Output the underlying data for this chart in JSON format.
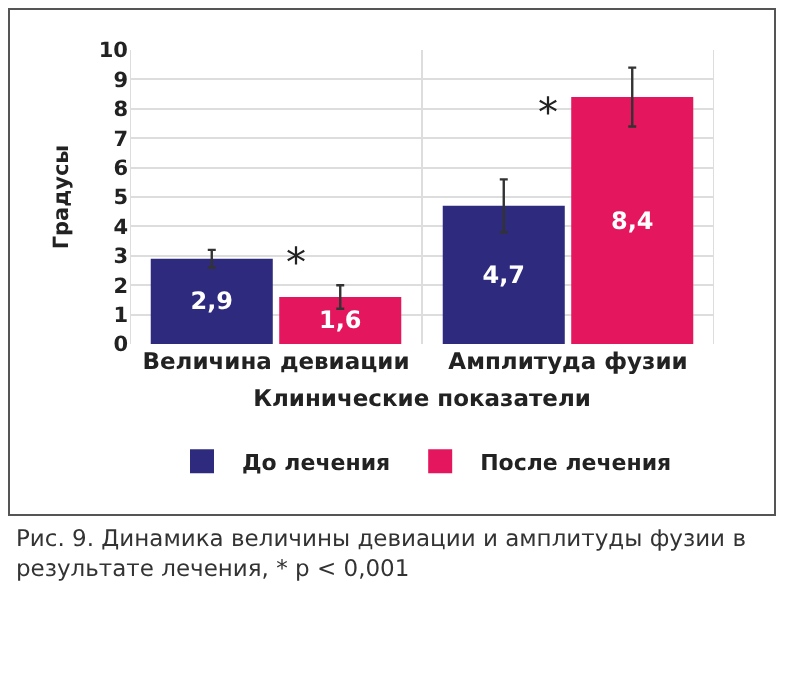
{
  "chart_data": {
    "type": "bar",
    "xlabel": "Клинические показатели",
    "ylabel": "Градусы",
    "categories": [
      "Величина девиации",
      "Амплитуда фузии"
    ],
    "series": [
      {
        "name": "До лечения",
        "color": "#2e2b7f",
        "values": [
          2.9,
          4.7
        ],
        "errors": [
          0.3,
          0.9
        ],
        "value_labels": [
          "2,9",
          "4,7"
        ]
      },
      {
        "name": "После лечения",
        "color": "#e3165e",
        "values": [
          1.6,
          8.4
        ],
        "errors": [
          0.4,
          1.0
        ],
        "value_labels": [
          "1,6",
          "8,4"
        ]
      }
    ],
    "ylim": [
      0,
      10
    ],
    "yticks": [
      0,
      1,
      2,
      3,
      4,
      5,
      6,
      7,
      8,
      9,
      10
    ],
    "grid": "y",
    "legend": "bottom",
    "annotations": [
      {
        "text": "*",
        "x": "Величина девиации",
        "y": 2.8
      },
      {
        "text": "*",
        "x": "Амплитуда фузии",
        "y": 7.9
      },
      "Рис. 9. Динамика величины девиации и амплитуды фузии в результате лечения, * p < 0,001"
    ]
  }
}
